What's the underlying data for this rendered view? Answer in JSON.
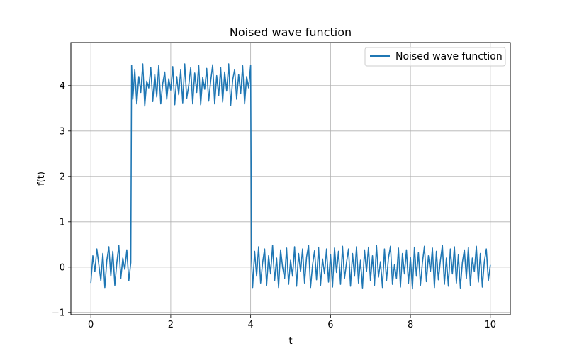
{
  "chart_data": {
    "type": "line",
    "title": "Noised wave function",
    "xlabel": "t",
    "ylabel": "f(t)",
    "xlim": [
      -0.5,
      10.5
    ],
    "ylim": [
      -1.05,
      4.95
    ],
    "x_ticks": [
      0,
      2,
      4,
      6,
      8,
      10
    ],
    "y_ticks": [
      -1,
      0,
      1,
      2,
      3,
      4
    ],
    "x_tick_labels": [
      "0",
      "2",
      "4",
      "6",
      "8",
      "10"
    ],
    "y_tick_labels": [
      "−1",
      "0",
      "1",
      "2",
      "3",
      "4"
    ],
    "grid": true,
    "legend_position": "top-right",
    "series": [
      {
        "name": "Noised wave function",
        "color": "#1f77b4",
        "x": [
          0,
          0.05,
          0.1,
          0.15,
          0.2,
          0.25,
          0.3,
          0.35,
          0.4,
          0.45,
          0.5,
          0.55,
          0.6,
          0.65,
          0.7,
          0.75,
          0.8,
          0.85,
          0.9,
          0.95,
          1.0,
          1.02,
          1.05,
          1.1,
          1.15,
          1.2,
          1.25,
          1.3,
          1.35,
          1.4,
          1.45,
          1.5,
          1.55,
          1.6,
          1.65,
          1.7,
          1.75,
          1.8,
          1.85,
          1.9,
          1.95,
          2.0,
          2.05,
          2.1,
          2.15,
          2.2,
          2.25,
          2.3,
          2.35,
          2.4,
          2.45,
          2.5,
          2.55,
          2.6,
          2.65,
          2.7,
          2.75,
          2.8,
          2.85,
          2.9,
          2.95,
          3.0,
          3.05,
          3.1,
          3.15,
          3.2,
          3.25,
          3.3,
          3.35,
          3.4,
          3.45,
          3.5,
          3.55,
          3.6,
          3.65,
          3.7,
          3.75,
          3.8,
          3.85,
          3.9,
          3.95,
          4.0,
          4.02,
          4.05,
          4.1,
          4.15,
          4.2,
          4.25,
          4.3,
          4.35,
          4.4,
          4.45,
          4.5,
          4.55,
          4.6,
          4.65,
          4.7,
          4.75,
          4.8,
          4.85,
          4.9,
          4.95,
          5.0,
          5.05,
          5.1,
          5.15,
          5.2,
          5.25,
          5.3,
          5.35,
          5.4,
          5.45,
          5.5,
          5.55,
          5.6,
          5.65,
          5.7,
          5.75,
          5.8,
          5.85,
          5.9,
          5.95,
          6.0,
          6.05,
          6.1,
          6.15,
          6.2,
          6.25,
          6.3,
          6.35,
          6.4,
          6.45,
          6.5,
          6.55,
          6.6,
          6.65,
          6.7,
          6.75,
          6.8,
          6.85,
          6.9,
          6.95,
          7.0,
          7.05,
          7.1,
          7.15,
          7.2,
          7.25,
          7.3,
          7.35,
          7.4,
          7.45,
          7.5,
          7.55,
          7.6,
          7.65,
          7.7,
          7.75,
          7.8,
          7.85,
          7.9,
          7.95,
          8.0,
          8.05,
          8.1,
          8.15,
          8.2,
          8.25,
          8.3,
          8.35,
          8.4,
          8.45,
          8.5,
          8.55,
          8.6,
          8.65,
          8.7,
          8.75,
          8.8,
          8.85,
          8.9,
          8.95,
          9.0,
          9.05,
          9.1,
          9.15,
          9.2,
          9.25,
          9.3,
          9.35,
          9.4,
          9.45,
          9.5,
          9.55,
          9.6,
          9.65,
          9.7,
          9.75,
          9.8,
          9.85,
          9.9,
          9.95,
          10.0
        ],
        "y": [
          -0.35,
          0.25,
          -0.1,
          0.4,
          0.05,
          -0.3,
          0.3,
          -0.45,
          0.15,
          0.45,
          -0.2,
          0.35,
          -0.4,
          0.1,
          0.48,
          -0.25,
          0.2,
          -0.05,
          0.38,
          -0.3,
          0.1,
          4.45,
          3.7,
          4.35,
          3.6,
          4.2,
          3.85,
          4.48,
          3.55,
          4.1,
          3.95,
          4.4,
          3.65,
          4.25,
          3.75,
          4.45,
          3.6,
          4.05,
          4.3,
          3.7,
          4.15,
          3.9,
          4.42,
          3.58,
          4.2,
          3.8,
          4.35,
          3.62,
          4.48,
          3.72,
          4.0,
          4.4,
          3.6,
          4.28,
          3.85,
          4.45,
          3.58,
          4.18,
          3.92,
          4.38,
          3.66,
          4.1,
          4.46,
          3.6,
          4.22,
          3.78,
          4.4,
          3.64,
          4.3,
          3.88,
          4.48,
          3.56,
          4.12,
          4.36,
          3.7,
          4.25,
          3.82,
          4.44,
          3.6,
          4.2,
          3.95,
          4.45,
          0.2,
          -0.45,
          0.35,
          -0.2,
          0.45,
          -0.35,
          0.1,
          0.4,
          -0.4,
          0.25,
          -0.15,
          0.48,
          -0.3,
          0.2,
          -0.45,
          0.38,
          0.0,
          -0.25,
          0.42,
          -0.38,
          0.15,
          -0.2,
          0.45,
          -0.42,
          0.3,
          -0.1,
          0.4,
          -0.35,
          0.22,
          0.48,
          -0.45,
          0.05,
          0.36,
          -0.28,
          0.44,
          -0.4,
          0.18,
          -0.15,
          0.4,
          -0.33,
          0.28,
          -0.44,
          0.42,
          -0.12,
          0.35,
          -0.38,
          0.46,
          -0.25,
          0.1,
          0.4,
          -0.42,
          0.3,
          -0.2,
          0.45,
          -0.35,
          0.15,
          -0.46,
          0.38,
          -0.1,
          0.44,
          -0.3,
          0.25,
          -0.4,
          0.48,
          -0.22,
          0.12,
          -0.45,
          0.4,
          -0.3,
          0.2,
          0.46,
          -0.38,
          0.05,
          -0.25,
          0.42,
          -0.44,
          0.3,
          -0.15,
          0.38,
          -0.36,
          0.22,
          -0.48,
          0.44,
          -0.2,
          0.32,
          -0.4,
          0.1,
          0.46,
          -0.32,
          0.25,
          -0.1,
          0.42,
          -0.45,
          0.35,
          -0.28,
          0.15,
          0.48,
          -0.38,
          0.2,
          -0.42,
          0.4,
          -0.15,
          0.45,
          -0.35,
          0.28,
          -0.46,
          0.1,
          0.38,
          -0.25,
          0.44,
          -0.4,
          0.2,
          -0.1,
          0.46,
          -0.33,
          0.3,
          -0.44,
          0.12,
          0.4,
          -0.3,
          0.05
        ]
      }
    ]
  }
}
